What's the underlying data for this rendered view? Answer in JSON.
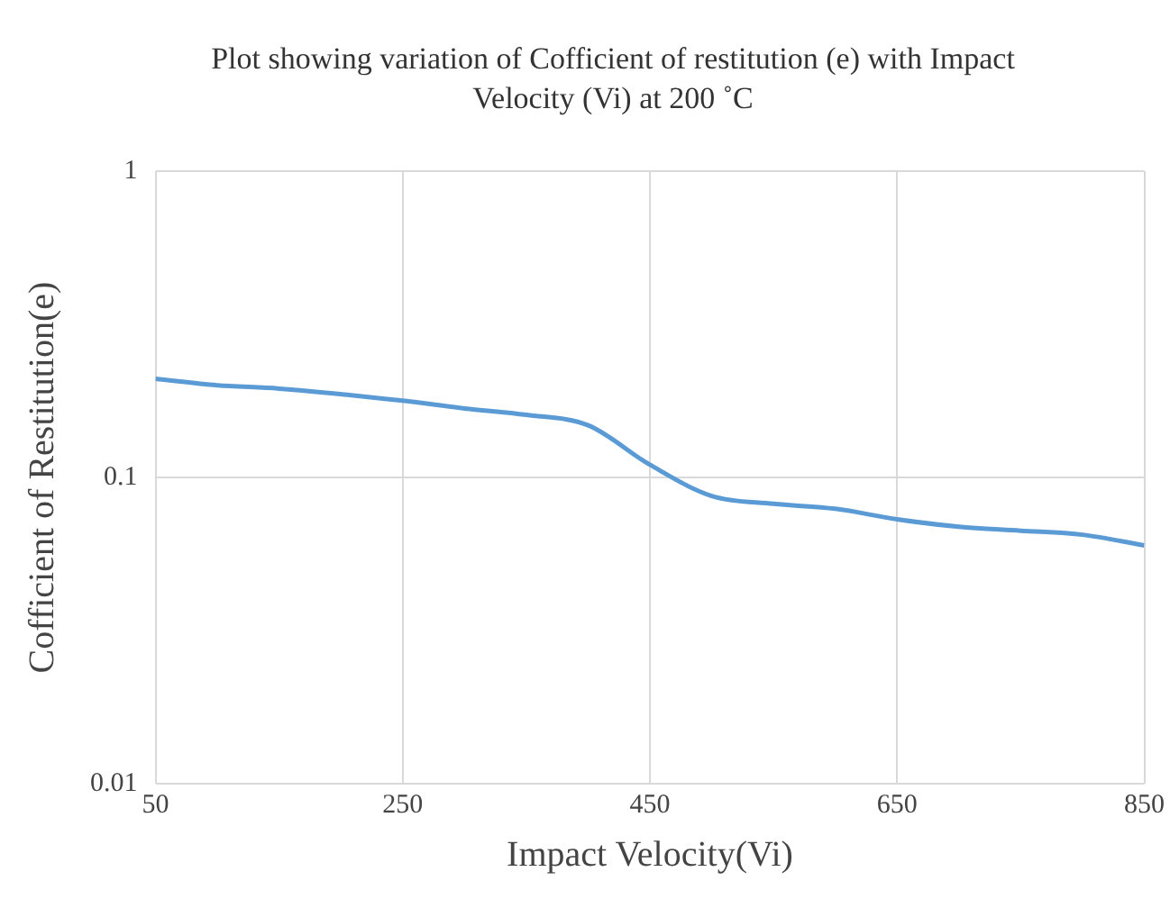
{
  "chart_data": {
    "type": "line",
    "title": "Plot showing variation of Cofficient of restitution (e) with Impact Velocity (Vi) at 200 ˚C",
    "xlabel": "Impact Velocity(Vi)",
    "ylabel": "Cofficient of Restitution(e)",
    "x": [
      50,
      100,
      150,
      250,
      300,
      350,
      400,
      450,
      500,
      550,
      600,
      650,
      700,
      750,
      800,
      850
    ],
    "series": [
      {
        "color": "#5b9bd5",
        "values": [
          0.21,
          0.2,
          0.195,
          0.178,
          0.168,
          0.16,
          0.148,
          0.11,
          0.087,
          0.082,
          0.079,
          0.073,
          0.069,
          0.067,
          0.065,
          0.06
        ]
      }
    ],
    "xlim": [
      50,
      850
    ],
    "xticks": [
      50,
      250,
      450,
      650,
      850
    ],
    "ylim": [
      0.01,
      1
    ],
    "yticks": [
      0.01,
      0.1,
      1
    ],
    "log": "y",
    "grid": true,
    "legend": false,
    "marker": "none",
    "line_style": "solid"
  }
}
